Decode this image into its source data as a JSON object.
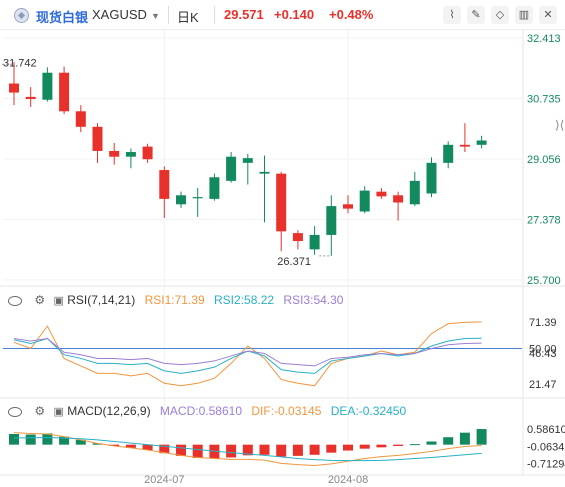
{
  "header": {
    "symbol_cn": "现货白银",
    "symbol": "XAGUSD",
    "period": "日K",
    "price": "29.571",
    "change": "+0.140",
    "change_pct": "+0.48%",
    "colors": {
      "up": "#e8312a",
      "down": "#138a5e"
    }
  },
  "toolbar": {
    "icons": [
      "line-chart-icon",
      "draw-icon",
      "shapes-icon",
      "candle-icon",
      "close-icon"
    ],
    "side_icon": "expand-icon"
  },
  "chart_data": [
    {
      "type": "candlestick",
      "price_axis_labels": [
        "32.413",
        "30.735",
        "29.056",
        "27.378",
        "25.700"
      ],
      "ylim": [
        25.7,
        32.413
      ],
      "high_label": "31.742",
      "low_label": "26.371",
      "x_labels": [
        "2024-07",
        "2024-08"
      ],
      "colors": {
        "up": "#138a5e",
        "down": "#e8312a"
      },
      "candles": [
        {
          "o": 31.15,
          "h": 31.74,
          "l": 30.55,
          "c": 30.9
        },
        {
          "o": 30.78,
          "h": 31.05,
          "l": 30.5,
          "c": 30.72
        },
        {
          "o": 30.7,
          "h": 31.6,
          "l": 30.65,
          "c": 31.45
        },
        {
          "o": 31.45,
          "h": 31.62,
          "l": 30.3,
          "c": 30.38
        },
        {
          "o": 30.38,
          "h": 30.55,
          "l": 29.8,
          "c": 29.95
        },
        {
          "o": 29.95,
          "h": 30.05,
          "l": 28.95,
          "c": 29.28
        },
        {
          "o": 29.28,
          "h": 29.5,
          "l": 28.9,
          "c": 29.12
        },
        {
          "o": 29.12,
          "h": 29.35,
          "l": 28.8,
          "c": 29.25
        },
        {
          "o": 29.4,
          "h": 29.48,
          "l": 28.95,
          "c": 29.05
        },
        {
          "o": 28.75,
          "h": 28.85,
          "l": 27.42,
          "c": 27.95
        },
        {
          "o": 27.8,
          "h": 28.15,
          "l": 27.7,
          "c": 28.05
        },
        {
          "o": 28.0,
          "h": 28.25,
          "l": 27.45,
          "c": 28.0
        },
        {
          "o": 27.95,
          "h": 28.65,
          "l": 27.9,
          "c": 28.55
        },
        {
          "o": 28.45,
          "h": 29.25,
          "l": 28.4,
          "c": 29.12
        },
        {
          "o": 28.95,
          "h": 29.2,
          "l": 28.35,
          "c": 29.08
        },
        {
          "o": 28.65,
          "h": 29.15,
          "l": 27.3,
          "c": 28.7
        },
        {
          "o": 28.65,
          "h": 28.7,
          "l": 26.5,
          "c": 27.05
        },
        {
          "o": 27.0,
          "h": 27.08,
          "l": 26.55,
          "c": 26.78
        },
        {
          "o": 26.55,
          "h": 27.2,
          "l": 26.4,
          "c": 26.95
        },
        {
          "o": 26.95,
          "h": 28.05,
          "l": 26.37,
          "c": 27.75
        },
        {
          "o": 27.8,
          "h": 28.05,
          "l": 27.55,
          "c": 27.68
        },
        {
          "o": 27.6,
          "h": 28.3,
          "l": 27.55,
          "c": 28.18
        },
        {
          "o": 28.15,
          "h": 28.25,
          "l": 27.95,
          "c": 28.02
        },
        {
          "o": 28.05,
          "h": 28.15,
          "l": 27.35,
          "c": 27.85
        },
        {
          "o": 27.8,
          "h": 28.7,
          "l": 27.75,
          "c": 28.45
        },
        {
          "o": 28.1,
          "h": 29.1,
          "l": 28.0,
          "c": 28.95
        },
        {
          "o": 28.95,
          "h": 29.55,
          "l": 28.8,
          "c": 29.45
        },
        {
          "o": 29.45,
          "h": 30.05,
          "l": 29.25,
          "c": 29.4
        },
        {
          "o": 29.45,
          "h": 29.7,
          "l": 29.35,
          "c": 29.57
        }
      ]
    },
    {
      "type": "line",
      "name": "RSI",
      "params": "RSI(7,14,21)",
      "axis_labels": [
        "71.39",
        "50.00",
        "46.43",
        "21.47"
      ],
      "ylim": [
        15,
        85
      ],
      "reference_line": 50,
      "series": [
        {
          "name": "RSI1",
          "value_label": "71.39",
          "color": "#f0963c",
          "values": [
            55,
            50,
            68,
            42,
            36,
            30,
            30,
            28,
            30,
            22,
            20,
            22,
            26,
            38,
            52,
            42,
            25,
            22,
            20,
            38,
            42,
            44,
            48,
            45,
            47,
            62,
            70,
            71,
            71.39
          ]
        },
        {
          "name": "RSI2",
          "value_label": "58.22",
          "color": "#27b0c8",
          "values": [
            57,
            54,
            58,
            45,
            42,
            38,
            38,
            37,
            38,
            32,
            30,
            32,
            35,
            42,
            48,
            44,
            33,
            31,
            30,
            40,
            42,
            44,
            46,
            44,
            46,
            52,
            56,
            58,
            58.22
          ]
        },
        {
          "name": "RSI3",
          "value_label": "54.30",
          "color": "#9a7ed6",
          "values": [
            58,
            56,
            58,
            47,
            45,
            42,
            42,
            41,
            42,
            38,
            37,
            38,
            40,
            44,
            48,
            46,
            38,
            37,
            36,
            42,
            43,
            45,
            46,
            45,
            46,
            50,
            53,
            54,
            54.3
          ]
        }
      ]
    },
    {
      "type": "bar",
      "name": "MACD",
      "params": "MACD(12,26,9)",
      "axis_labels": [
        "0.58610",
        "-0.06342",
        "-0.71294"
      ],
      "ylim": [
        -0.95,
        0.85
      ],
      "series": [
        {
          "name": "MACD",
          "value_label": "0.58610",
          "colors": {
            "up": "#138a5e",
            "down": "#e8312a"
          },
          "values": [
            0.4,
            0.38,
            0.42,
            0.3,
            0.18,
            0.05,
            -0.05,
            -0.12,
            -0.2,
            -0.32,
            -0.42,
            -0.5,
            -0.52,
            -0.48,
            -0.4,
            -0.38,
            -0.45,
            -0.42,
            -0.38,
            -0.3,
            -0.22,
            -0.15,
            -0.1,
            -0.05,
            0.02,
            0.12,
            0.28,
            0.45,
            0.5861
          ]
        },
        {
          "name": "DIF",
          "value_label": "-0.03145",
          "color": "#f0963c",
          "values": [
            0.45,
            0.42,
            0.4,
            0.3,
            0.18,
            0.05,
            -0.05,
            -0.12,
            -0.2,
            -0.3,
            -0.4,
            -0.48,
            -0.52,
            -0.55,
            -0.55,
            -0.58,
            -0.7,
            -0.75,
            -0.78,
            -0.72,
            -0.62,
            -0.52,
            -0.45,
            -0.4,
            -0.33,
            -0.25,
            -0.15,
            -0.07,
            -0.03145
          ]
        },
        {
          "name": "DEA",
          "value_label": "-0.32450",
          "color": "#27b0c8",
          "values": [
            0.25,
            0.26,
            0.27,
            0.25,
            0.22,
            0.18,
            0.12,
            0.06,
            0.0,
            -0.06,
            -0.12,
            -0.18,
            -0.24,
            -0.3,
            -0.35,
            -0.4,
            -0.46,
            -0.52,
            -0.56,
            -0.59,
            -0.6,
            -0.6,
            -0.59,
            -0.56,
            -0.52,
            -0.48,
            -0.43,
            -0.38,
            -0.3245
          ]
        }
      ]
    }
  ]
}
